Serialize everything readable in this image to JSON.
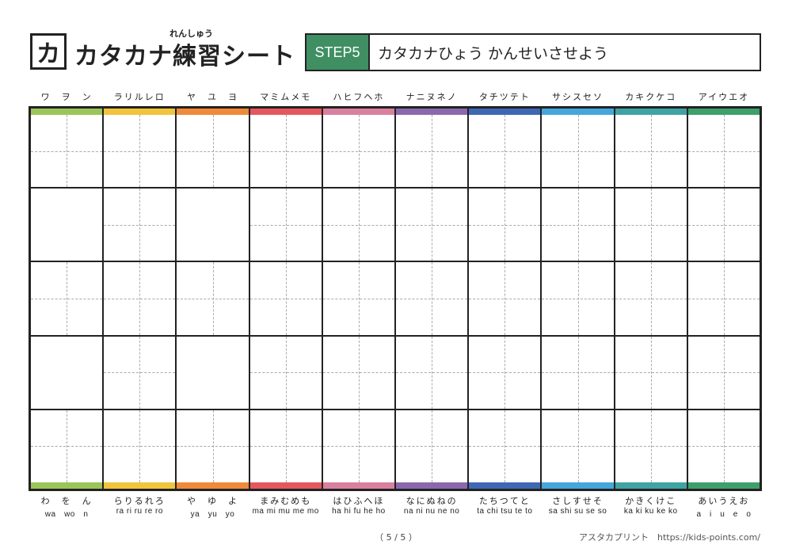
{
  "header": {
    "logo_char": "カ",
    "title": "カタカナ練習シート",
    "title_ruby": "れんしゅう",
    "step_label": "STEP5",
    "step_text": "カタカナひょう かんせいさせよう"
  },
  "columns": [
    {
      "katakana": "ワ　ヲ　ン",
      "hiragana": "わ　を　ん",
      "romaji": "wa　wo　n",
      "color": "#9bc55a",
      "blocked": [
        1,
        3
      ]
    },
    {
      "katakana": "ラリルレロ",
      "hiragana": "らりるれろ",
      "romaji": "ra ri ru re ro",
      "color": "#f0c43c",
      "blocked": []
    },
    {
      "katakana": "ヤ　ユ　ヨ",
      "hiragana": "や　ゆ　よ",
      "romaji": "ya　yu　yo",
      "color": "#ef8a3a",
      "blocked": [
        1,
        3
      ]
    },
    {
      "katakana": "マミムメモ",
      "hiragana": "まみむめも",
      "romaji": "ma mi mu me mo",
      "color": "#e4585d",
      "blocked": []
    },
    {
      "katakana": "ハヒフヘホ",
      "hiragana": "はひふへほ",
      "romaji": "ha hi fu he ho",
      "color": "#d9809f",
      "blocked": []
    },
    {
      "katakana": "ナニヌネノ",
      "hiragana": "なにぬねの",
      "romaji": "na ni nu ne no",
      "color": "#8b68ae",
      "blocked": []
    },
    {
      "katakana": "タチツテト",
      "hiragana": "たちつてと",
      "romaji": "ta chi tsu te to",
      "color": "#3f68b4",
      "blocked": []
    },
    {
      "katakana": "サシスセソ",
      "hiragana": "さしすせそ",
      "romaji": "sa shi su se so",
      "color": "#46a6dc",
      "blocked": []
    },
    {
      "katakana": "カキクケコ",
      "hiragana": "かきくけこ",
      "romaji": "ka ki ku ke ko",
      "color": "#3fa3a4",
      "blocked": []
    },
    {
      "katakana": "アイウエオ",
      "hiragana": "あいうえお",
      "romaji": "a　i　u　e　o",
      "color": "#3f9f6a",
      "blocked": []
    }
  ],
  "footer": {
    "page_number": "（ 5 / 5 ）",
    "credit": "アスタカプリント　https://kids-points.com/"
  }
}
